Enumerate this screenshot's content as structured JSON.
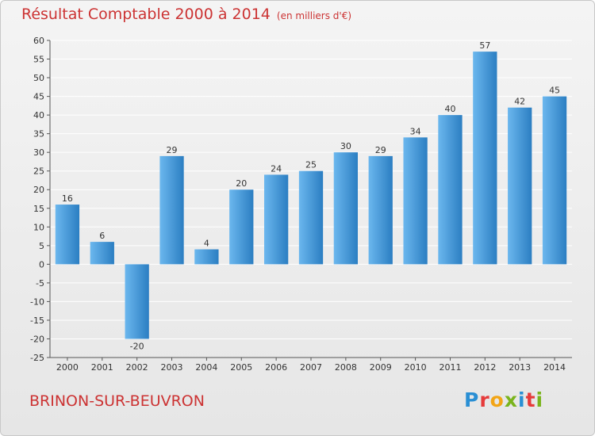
{
  "title": "Résultat Comptable 2000 à 2014",
  "subtitle": "(en milliers d'€)",
  "commune": "BRINON-SUR-BEUVRON",
  "logo": {
    "letters": [
      "P",
      "r",
      "o",
      "x",
      "i",
      "t",
      "i"
    ],
    "colors": [
      "#2a8fd4",
      "#e63b3b",
      "#f2a516",
      "#7ab41d",
      "#2a8fd4",
      "#e63b3b",
      "#7ab41d"
    ]
  },
  "colors": {
    "bar_light": "#6bb7ee",
    "bar_dark": "#2b7ec2",
    "grid": "#ffffff",
    "axis": "#555555"
  },
  "chart_data": {
    "type": "bar",
    "categories": [
      "2000",
      "2001",
      "2002",
      "2003",
      "2004",
      "2005",
      "2006",
      "2007",
      "2008",
      "2009",
      "2010",
      "2011",
      "2012",
      "2013",
      "2014"
    ],
    "values": [
      16,
      6,
      -20,
      29,
      4,
      20,
      24,
      25,
      30,
      29,
      34,
      40,
      57,
      42,
      45
    ],
    "title": "Résultat Comptable 2000 à 2014",
    "subtitle": "(en milliers d'€)",
    "ylim": [
      -25,
      60
    ],
    "yticks": [
      -25,
      -20,
      -15,
      -10,
      -5,
      0,
      5,
      10,
      15,
      20,
      25,
      30,
      35,
      40,
      45,
      50,
      55,
      60
    ],
    "grid": true,
    "legend": "none"
  }
}
